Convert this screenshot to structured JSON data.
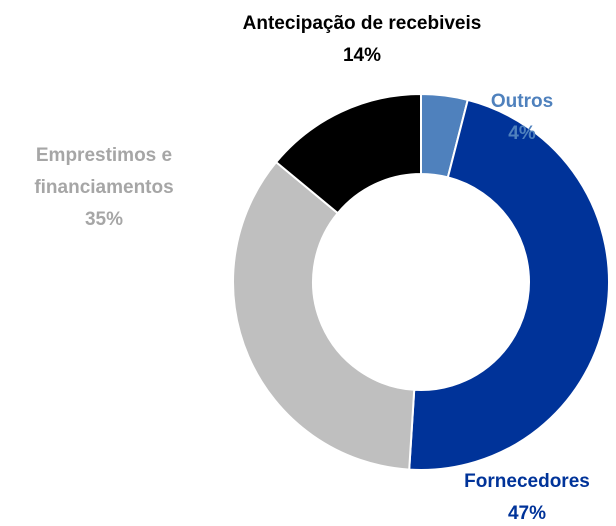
{
  "chart_data": {
    "type": "donut",
    "categories": [
      "Outros",
      "Fornecedores",
      "Emprestimos e financiamentos",
      "Antecipação de recebiveis"
    ],
    "values": [
      4,
      47,
      35,
      14
    ],
    "value_labels": [
      "4%",
      "47%",
      "35%",
      "14%"
    ],
    "colors": [
      "#4f81bd",
      "#003399",
      "#bfbfbf",
      "#000000"
    ],
    "label_colors": [
      "#4f81bd",
      "#003399",
      "#a6a6a6",
      "#000000"
    ]
  }
}
